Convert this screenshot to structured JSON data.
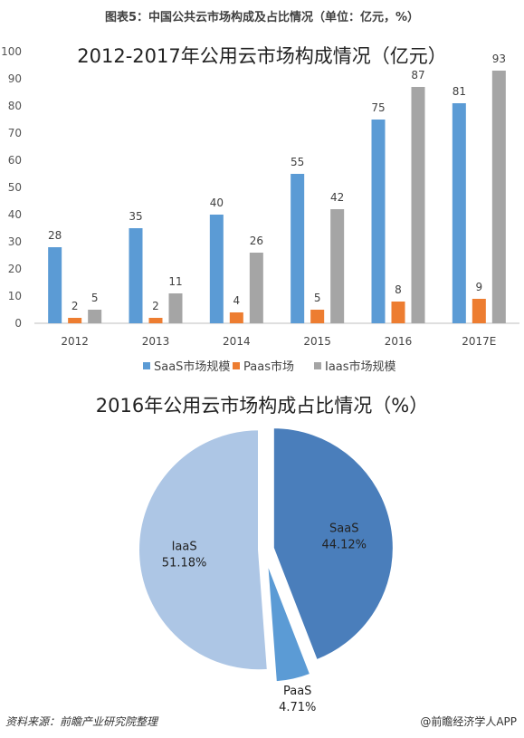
{
  "figure_title": "图表5：中国公共云市场构成及占比情况（单位：亿元，%）",
  "footer": {
    "source": "资料来源：前瞻产业研究院整理",
    "brand": "@前瞻经济学人APP"
  },
  "chart_data": [
    {
      "type": "bar",
      "title": "2012-2017年公用云市场构成情况（亿元）",
      "categories": [
        "2012",
        "2013",
        "2014",
        "2015",
        "2016",
        "2017E"
      ],
      "ylim": [
        0,
        100
      ],
      "yticks": [
        0,
        10,
        20,
        30,
        40,
        50,
        60,
        70,
        80,
        90,
        100
      ],
      "grid": false,
      "legend": "bottom",
      "series": [
        {
          "name": "SaaS市场规模",
          "color": "#5B9BD5",
          "values": [
            28,
            35,
            40,
            55,
            75,
            81
          ]
        },
        {
          "name": "Paas市场",
          "color": "#ED7D31",
          "values": [
            2,
            2,
            4,
            5,
            8,
            9
          ]
        },
        {
          "name": "Iaas市场规模",
          "color": "#A5A5A5",
          "values": [
            5,
            11,
            26,
            42,
            87,
            93
          ]
        }
      ]
    },
    {
      "type": "pie",
      "title": "2016年公用云市场构成占比情况（%）",
      "slices": [
        {
          "label": "SaaS",
          "value": 44.12,
          "value_label": "44.12%",
          "color": "#4A7EBB"
        },
        {
          "label": "PaaS",
          "value": 4.71,
          "value_label": "4.71%",
          "color": "#5B9BD5"
        },
        {
          "label": "IaaS",
          "value": 51.18,
          "value_label": "51.18%",
          "color": "#ADC6E5"
        }
      ]
    }
  ]
}
